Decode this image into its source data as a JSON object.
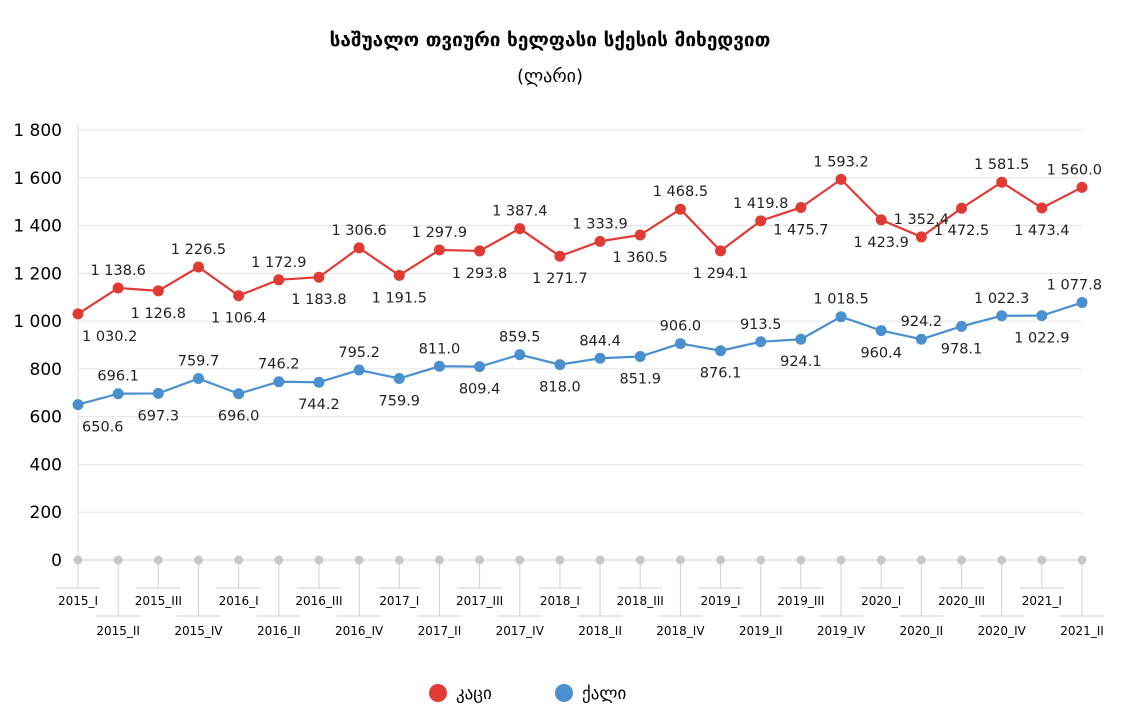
{
  "chart_data": {
    "type": "line",
    "title": "საშუალო თვიური ხელფასი სქესის მიხედვით",
    "subtitle": "(ლარი)",
    "categories": [
      "2015_I",
      "2015_II",
      "2015_III",
      "2015_IV",
      "2016_I",
      "2016_II",
      "2016_III",
      "2016_IV",
      "2017_I",
      "2017_II",
      "2017_III",
      "2017_IV",
      "2018_I",
      "2018_II",
      "2018_III",
      "2018_IV",
      "2019_I",
      "2019_II",
      "2019_III",
      "2019_IV",
      "2020_I",
      "2020_II",
      "2020_III",
      "2020_IV",
      "2021_I",
      "2021_II"
    ],
    "series": [
      {
        "name": "კაცი",
        "color": "#e03a35",
        "values": [
          1030.2,
          1138.6,
          1126.8,
          1226.5,
          1106.4,
          1172.9,
          1183.8,
          1306.6,
          1191.5,
          1297.9,
          1293.8,
          1387.4,
          1271.7,
          1333.9,
          1360.5,
          1468.5,
          1294.1,
          1419.8,
          1475.7,
          1593.2,
          1423.9,
          1352.4,
          1472.5,
          1581.5,
          1473.4,
          1560.0
        ],
        "labels": [
          "1 030.2",
          "1 138.6",
          "1 126.8",
          "1 226.5",
          "1 106.4",
          "1 172.9",
          "1 183.8",
          "1 306.6",
          "1 191.5",
          "1 297.9",
          "1 293.8",
          "1 387.4",
          "1 271.7",
          "1 333.9",
          "1 360.5",
          "1 468.5",
          "1 294.1",
          "1 419.8",
          "1 475.7",
          "1 593.2",
          "1 423.9",
          "1 352.4",
          "1 472.5",
          "1 581.5",
          "1 473.4",
          "1 560.0"
        ],
        "label_pos": [
          "below",
          "above",
          "below",
          "above",
          "below",
          "above",
          "below",
          "above",
          "below",
          "above",
          "below",
          "above",
          "below",
          "above",
          "below",
          "above",
          "below",
          "above",
          "below",
          "above",
          "below",
          "above",
          "below",
          "above",
          "below",
          "above"
        ]
      },
      {
        "name": "ქალი",
        "color": "#4a90cf",
        "values": [
          650.6,
          696.1,
          697.3,
          759.7,
          696.0,
          746.2,
          744.2,
          795.2,
          759.9,
          811.0,
          809.4,
          859.5,
          818.0,
          844.4,
          851.9,
          906.0,
          876.1,
          913.5,
          924.1,
          1018.5,
          960.4,
          924.2,
          978.1,
          1022.3,
          1022.9,
          1077.8
        ],
        "labels": [
          "650.6",
          "696.1",
          "697.3",
          "759.7",
          "696.0",
          "746.2",
          "744.2",
          "795.2",
          "759.9",
          "811.0",
          "809.4",
          "859.5",
          "818.0",
          "844.4",
          "851.9",
          "906.0",
          "876.1",
          "913.5",
          "924.1",
          "1 018.5",
          "960.4",
          "924.2",
          "978.1",
          "1 022.3",
          "1 022.9",
          "1 077.8"
        ],
        "label_pos": [
          "below",
          "above",
          "below",
          "above",
          "below",
          "above",
          "below",
          "above",
          "below",
          "above",
          "below",
          "above",
          "below",
          "above",
          "below",
          "above",
          "below",
          "above",
          "below",
          "above",
          "below",
          "above",
          "below",
          "above",
          "below",
          "above"
        ]
      }
    ],
    "y_ticks": [
      0,
      200,
      400,
      600,
      800,
      1000,
      1200,
      1400,
      1600,
      1800
    ],
    "y_tick_labels": [
      "0",
      "200",
      "400",
      "600",
      "800",
      "1 000",
      "1 200",
      "1 400",
      "1 600",
      "1 800"
    ],
    "ylim": [
      0,
      1800
    ],
    "grid": true,
    "legend_position": "bottom-center",
    "legend": [
      {
        "name": "კაცი",
        "color": "#e03a35"
      },
      {
        "name": "ქალი",
        "color": "#4a90cf"
      }
    ]
  }
}
